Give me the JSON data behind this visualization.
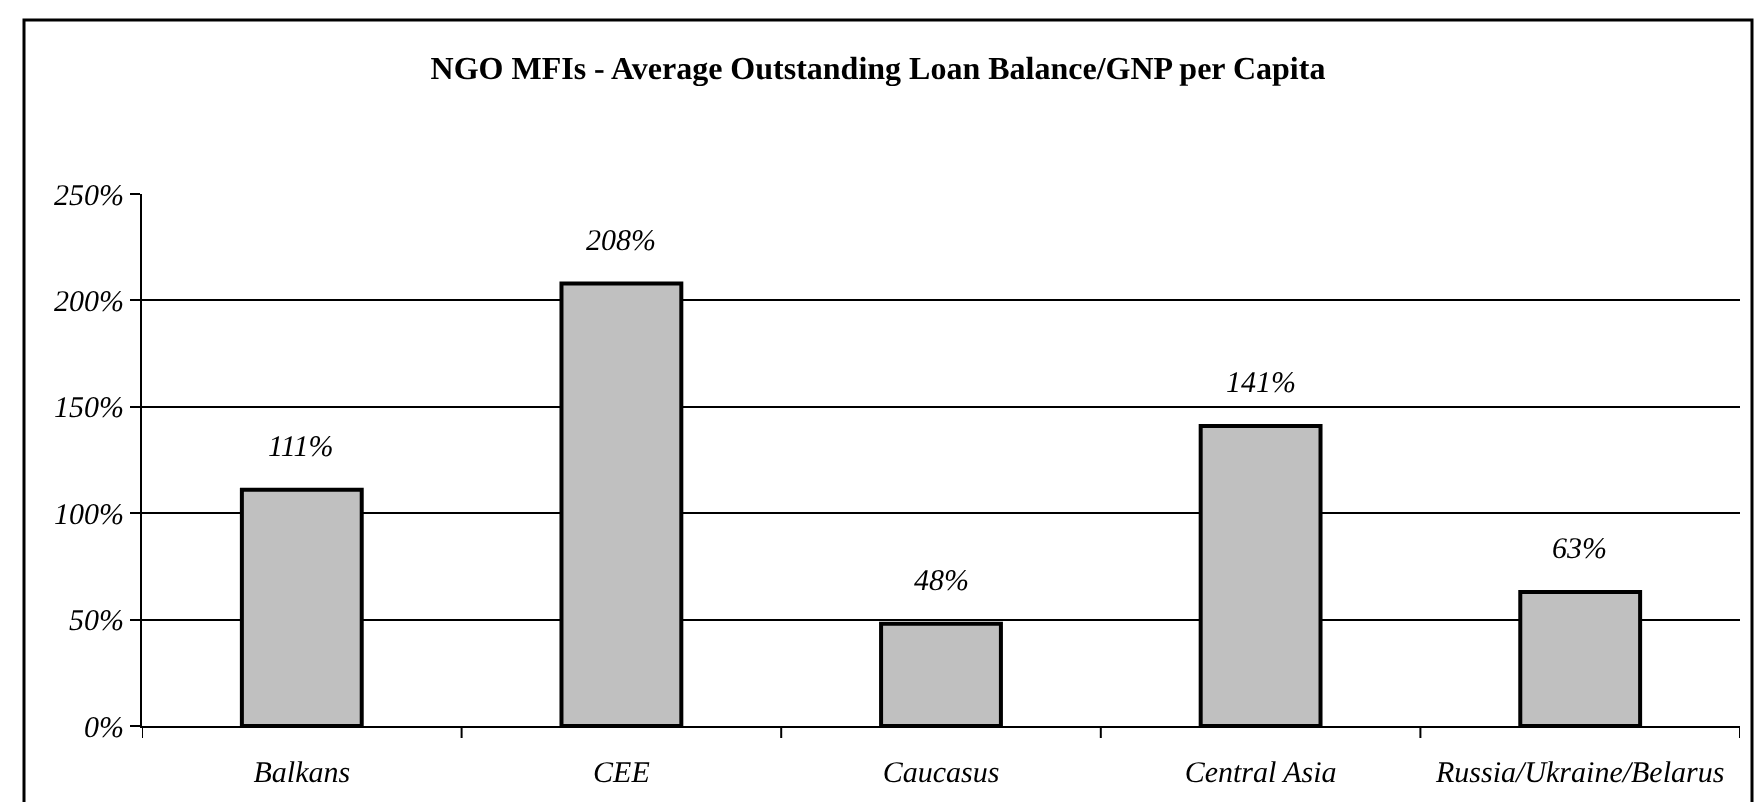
{
  "chart_data": {
    "type": "bar",
    "title": "NGO MFIs - Average Outstanding Loan Balance/GNP per Capita",
    "categories": [
      "Balkans",
      "CEE",
      "Caucasus",
      "Central Asia",
      "Russia/Ukraine/Belarus"
    ],
    "values": [
      111,
      208,
      48,
      141,
      63
    ],
    "value_labels": [
      "111%",
      "208%",
      "48%",
      "141%",
      "63%"
    ],
    "color": "#c0c0c0",
    "ylim": [
      0,
      250
    ],
    "yticks": [
      {
        "value": 0,
        "label": "0%"
      },
      {
        "value": 50,
        "label": "50%"
      },
      {
        "value": 100,
        "label": "100%"
      },
      {
        "value": 150,
        "label": "150%"
      },
      {
        "value": 200,
        "label": "200%"
      },
      {
        "value": 250,
        "label": "250%"
      }
    ],
    "grid": "y"
  }
}
